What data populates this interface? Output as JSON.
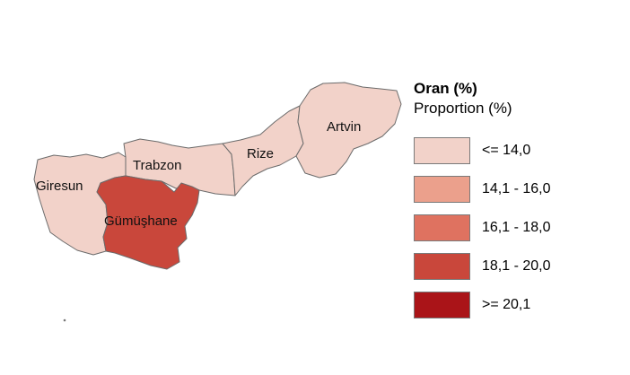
{
  "legend": {
    "title": "Oran (%)",
    "subtitle": "Proportion (%)",
    "classes": [
      {
        "label": "<= 14,0",
        "color": "#f2d2c9"
      },
      {
        "label": "14,1 - 16,0",
        "color": "#eba08c"
      },
      {
        "label": "16,1 - 18,0",
        "color": "#df7260"
      },
      {
        "label": "18,1 - 20,0",
        "color": "#c9473b"
      },
      {
        "label": ">= 20,1",
        "color": "#aa1418"
      }
    ]
  },
  "provinces": [
    {
      "name": "Giresun",
      "class": "<= 14,0",
      "color": "#f2d2c9"
    },
    {
      "name": "Trabzon",
      "class": "<= 14,0",
      "color": "#f2d2c9"
    },
    {
      "name": "Rize",
      "class": "<= 14,0",
      "color": "#f2d2c9"
    },
    {
      "name": "Artvin",
      "class": "<= 14,0",
      "color": "#f2d2c9"
    },
    {
      "name": "Gümüşhane",
      "class": "18,1 - 20,0",
      "color": "#c9473b"
    }
  ]
}
